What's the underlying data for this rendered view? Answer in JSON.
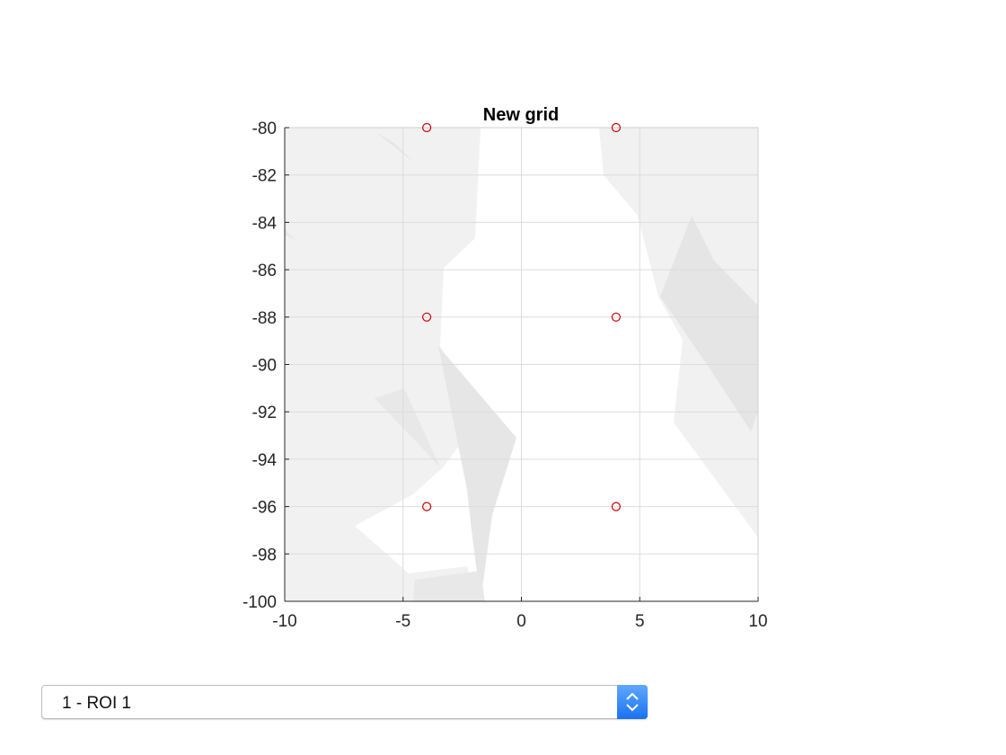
{
  "chart_data": {
    "type": "scatter",
    "title": "New grid",
    "xlabel": "",
    "ylabel": "",
    "xlim": [
      -10,
      10
    ],
    "ylim": [
      -100,
      -80
    ],
    "xticks": [
      -10,
      -5,
      0,
      5,
      10
    ],
    "yticks": [
      -100,
      -98,
      -96,
      -94,
      -92,
      -90,
      -88,
      -86,
      -84,
      -82,
      -80
    ],
    "grid": true,
    "marker": "circle",
    "marker_color": "#cc0000",
    "background_color": "#f2f2f2",
    "series": [
      {
        "points": [
          {
            "x": -4,
            "y": -80
          },
          {
            "x": 4,
            "y": -80
          },
          {
            "x": -4,
            "y": -88
          },
          {
            "x": 4,
            "y": -88
          },
          {
            "x": -4,
            "y": -96
          },
          {
            "x": 4,
            "y": -96
          }
        ]
      }
    ]
  },
  "selector": {
    "value": "1 - ROI 1",
    "icon": "up-down-arrows-icon",
    "accent": "#1b72f0"
  }
}
